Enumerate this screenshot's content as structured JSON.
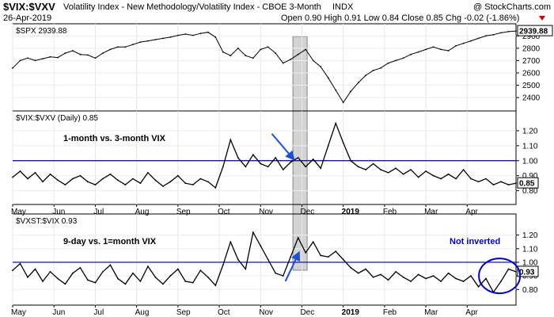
{
  "header": {
    "symbol": "$VIX:$VXV",
    "description": "Volatility Index - New Methodology/Volatility Index - CBOE 3-Month",
    "exchange": "INDX",
    "date": "26-Apr-2019",
    "ohlc": "Open 0.90  High 0.91  Low 0.84  Close 0.85  Chg -0.02 (-1.86%)",
    "source": "@ StockCharts.com",
    "down_color": "#cc0000"
  },
  "chart_data": [
    {
      "type": "line",
      "panel": "top",
      "series_label": "$SPX 2939.88",
      "last_value_label": "2939.88",
      "ylim": [
        2330,
        2960
      ],
      "yticks": [
        2400,
        2500,
        2600,
        2700,
        2800,
        2900
      ],
      "color": "#000000",
      "points": [
        [
          0,
          2640
        ],
        [
          1,
          2700
        ],
        [
          2,
          2720
        ],
        [
          3,
          2700
        ],
        [
          4,
          2715
        ],
        [
          5,
          2730
        ],
        [
          6,
          2725
        ],
        [
          7,
          2760
        ],
        [
          8,
          2780
        ],
        [
          9,
          2750
        ],
        [
          10,
          2745
        ],
        [
          11,
          2720
        ],
        [
          12,
          2760
        ],
        [
          13,
          2790
        ],
        [
          14,
          2810
        ],
        [
          15,
          2810
        ],
        [
          16,
          2830
        ],
        [
          17,
          2850
        ],
        [
          18,
          2860
        ],
        [
          19,
          2870
        ],
        [
          20,
          2880
        ],
        [
          21,
          2890
        ],
        [
          22,
          2905
        ],
        [
          23,
          2915
        ],
        [
          24,
          2905
        ],
        [
          25,
          2920
        ],
        [
          26,
          2930
        ],
        [
          27,
          2890
        ],
        [
          28,
          2770
        ],
        [
          29,
          2740
        ],
        [
          30,
          2800
        ],
        [
          31,
          2740
        ],
        [
          32,
          2720
        ],
        [
          33,
          2790
        ],
        [
          34,
          2810
        ],
        [
          35,
          2760
        ],
        [
          36,
          2680
        ],
        [
          37,
          2710
        ],
        [
          38,
          2750
        ],
        [
          39,
          2790
        ],
        [
          40,
          2700
        ],
        [
          41,
          2650
        ],
        [
          42,
          2560
        ],
        [
          43,
          2460
        ],
        [
          44,
          2360
        ],
        [
          45,
          2450
        ],
        [
          46,
          2520
        ],
        [
          47,
          2580
        ],
        [
          48,
          2620
        ],
        [
          49,
          2640
        ],
        [
          50,
          2680
        ],
        [
          51,
          2700
        ],
        [
          52,
          2720
        ],
        [
          53,
          2750
        ],
        [
          54,
          2770
        ],
        [
          55,
          2790
        ],
        [
          56,
          2810
        ],
        [
          57,
          2790
        ],
        [
          58,
          2780
        ],
        [
          59,
          2820
        ],
        [
          60,
          2840
        ],
        [
          61,
          2860
        ],
        [
          62,
          2880
        ],
        [
          63,
          2900
        ],
        [
          64,
          2910
        ],
        [
          65,
          2925
        ],
        [
          66,
          2935
        ],
        [
          67,
          2940
        ]
      ]
    },
    {
      "type": "line",
      "panel": "middle",
      "series_label": "$VIX:$VXV (Daily) 0.85",
      "annotation": "1-month vs. 3-month VIX",
      "last_value_label": "0.85",
      "ylim": [
        0.74,
        1.3
      ],
      "yticks": [
        0.8,
        0.9,
        1.0,
        1.1,
        1.2
      ],
      "reference_line": 1.0,
      "reference_color": "#00008b",
      "color": "#000000",
      "points": [
        [
          0,
          0.89
        ],
        [
          1,
          0.93
        ],
        [
          2,
          0.88
        ],
        [
          3,
          0.92
        ],
        [
          4,
          0.86
        ],
        [
          5,
          0.91
        ],
        [
          6,
          0.87
        ],
        [
          7,
          0.84
        ],
        [
          8,
          0.88
        ],
        [
          9,
          0.9
        ],
        [
          10,
          0.86
        ],
        [
          11,
          0.84
        ],
        [
          12,
          0.88
        ],
        [
          13,
          0.91
        ],
        [
          14,
          0.87
        ],
        [
          15,
          0.84
        ],
        [
          16,
          0.88
        ],
        [
          17,
          0.85
        ],
        [
          18,
          0.92
        ],
        [
          19,
          0.87
        ],
        [
          20,
          0.83
        ],
        [
          21,
          0.86
        ],
        [
          22,
          0.9
        ],
        [
          23,
          0.85
        ],
        [
          24,
          0.84
        ],
        [
          25,
          0.88
        ],
        [
          26,
          0.86
        ],
        [
          27,
          0.82
        ],
        [
          28,
          0.96
        ],
        [
          29,
          1.14
        ],
        [
          30,
          1.02
        ],
        [
          31,
          0.96
        ],
        [
          32,
          1.04
        ],
        [
          33,
          0.98
        ],
        [
          34,
          0.96
        ],
        [
          35,
          1.02
        ],
        [
          36,
          0.94
        ],
        [
          37,
          0.99
        ],
        [
          38,
          1.02
        ],
        [
          39,
          0.96
        ],
        [
          40,
          1.01
        ],
        [
          41,
          0.95
        ],
        [
          42,
          1.1
        ],
        [
          43,
          1.25
        ],
        [
          44,
          1.12
        ],
        [
          45,
          1.0
        ],
        [
          46,
          0.96
        ],
        [
          47,
          0.94
        ],
        [
          48,
          0.98
        ],
        [
          49,
          0.94
        ],
        [
          50,
          0.92
        ],
        [
          51,
          0.95
        ],
        [
          52,
          0.91
        ],
        [
          53,
          0.94
        ],
        [
          54,
          0.89
        ],
        [
          55,
          0.93
        ],
        [
          56,
          0.9
        ],
        [
          57,
          0.88
        ],
        [
          58,
          0.91
        ],
        [
          59,
          0.88
        ],
        [
          60,
          0.94
        ],
        [
          61,
          0.88
        ],
        [
          62,
          0.86
        ],
        [
          63,
          0.88
        ],
        [
          64,
          0.84
        ],
        [
          65,
          0.86
        ],
        [
          66,
          0.84
        ],
        [
          67,
          0.85
        ]
      ]
    },
    {
      "type": "line",
      "panel": "bottom",
      "series_label": "$VXST:$VIX 0.93",
      "annotation": "9-day vs. 1=month VIX",
      "annotation2": "Not inverted",
      "annotation2_color": "#0000cc",
      "last_value_label": "0.93",
      "ylim": [
        0.72,
        1.32
      ],
      "yticks": [
        0.8,
        0.9,
        1.0,
        1.1,
        1.2
      ],
      "reference_line": 1.0,
      "reference_color": "#00008b",
      "color": "#000000",
      "points": [
        [
          0,
          0.94
        ],
        [
          1,
          0.99
        ],
        [
          2,
          0.89
        ],
        [
          3,
          0.95
        ],
        [
          4,
          0.86
        ],
        [
          5,
          0.93
        ],
        [
          6,
          0.88
        ],
        [
          7,
          0.84
        ],
        [
          8,
          0.92
        ],
        [
          9,
          0.96
        ],
        [
          10,
          0.87
        ],
        [
          11,
          0.85
        ],
        [
          12,
          0.93
        ],
        [
          13,
          0.98
        ],
        [
          14,
          0.88
        ],
        [
          15,
          0.84
        ],
        [
          16,
          0.92
        ],
        [
          17,
          0.86
        ],
        [
          18,
          0.97
        ],
        [
          19,
          0.89
        ],
        [
          20,
          0.84
        ],
        [
          21,
          0.9
        ],
        [
          22,
          0.95
        ],
        [
          23,
          0.86
        ],
        [
          24,
          0.85
        ],
        [
          25,
          0.94
        ],
        [
          26,
          0.89
        ],
        [
          27,
          0.83
        ],
        [
          28,
          0.98
        ],
        [
          29,
          1.15
        ],
        [
          30,
          1.02
        ],
        [
          31,
          0.95
        ],
        [
          32,
          1.22
        ],
        [
          33,
          1.12
        ],
        [
          34,
          1.02
        ],
        [
          35,
          0.92
        ],
        [
          36,
          0.9
        ],
        [
          37,
          1.04
        ],
        [
          38,
          1.18
        ],
        [
          39,
          1.07
        ],
        [
          40,
          1.15
        ],
        [
          41,
          1.05
        ],
        [
          42,
          1.04
        ],
        [
          43,
          1.08
        ],
        [
          44,
          1.02
        ],
        [
          45,
          0.96
        ],
        [
          46,
          0.92
        ],
        [
          47,
          0.95
        ],
        [
          48,
          0.89
        ],
        [
          49,
          0.91
        ],
        [
          50,
          0.87
        ],
        [
          51,
          0.93
        ],
        [
          52,
          0.89
        ],
        [
          53,
          0.86
        ],
        [
          54,
          0.91
        ],
        [
          55,
          0.88
        ],
        [
          56,
          0.9
        ],
        [
          57,
          0.86
        ],
        [
          58,
          0.92
        ],
        [
          59,
          0.88
        ],
        [
          60,
          0.86
        ],
        [
          61,
          0.9
        ],
        [
          62,
          0.82
        ],
        [
          63,
          0.88
        ],
        [
          64,
          0.78
        ],
        [
          65,
          0.86
        ],
        [
          66,
          0.95
        ],
        [
          67,
          0.93
        ]
      ]
    }
  ],
  "x_axis": {
    "months": [
      {
        "label": "May",
        "t": 0
      },
      {
        "label": "Jun",
        "t": 5.5
      },
      {
        "label": "Jul",
        "t": 11
      },
      {
        "label": "Aug",
        "t": 16.5
      },
      {
        "label": "Sep",
        "t": 22
      },
      {
        "label": "Oct",
        "t": 27.5
      },
      {
        "label": "Nov",
        "t": 33
      },
      {
        "label": "Dec",
        "t": 38.5
      },
      {
        "label": "2019",
        "t": 44
      },
      {
        "label": "Feb",
        "t": 49.5
      },
      {
        "label": "Mar",
        "t": 55
      },
      {
        "label": "Apr",
        "t": 60.5
      }
    ],
    "tmax": 67,
    "bold_labels": [
      "2019"
    ]
  },
  "highlight": {
    "t_start": 37.3,
    "t_end": 39.2,
    "color": "#cccccc"
  },
  "arrows": {
    "color": "#1a4fd6"
  },
  "circle": {
    "color": "#0000cc"
  }
}
